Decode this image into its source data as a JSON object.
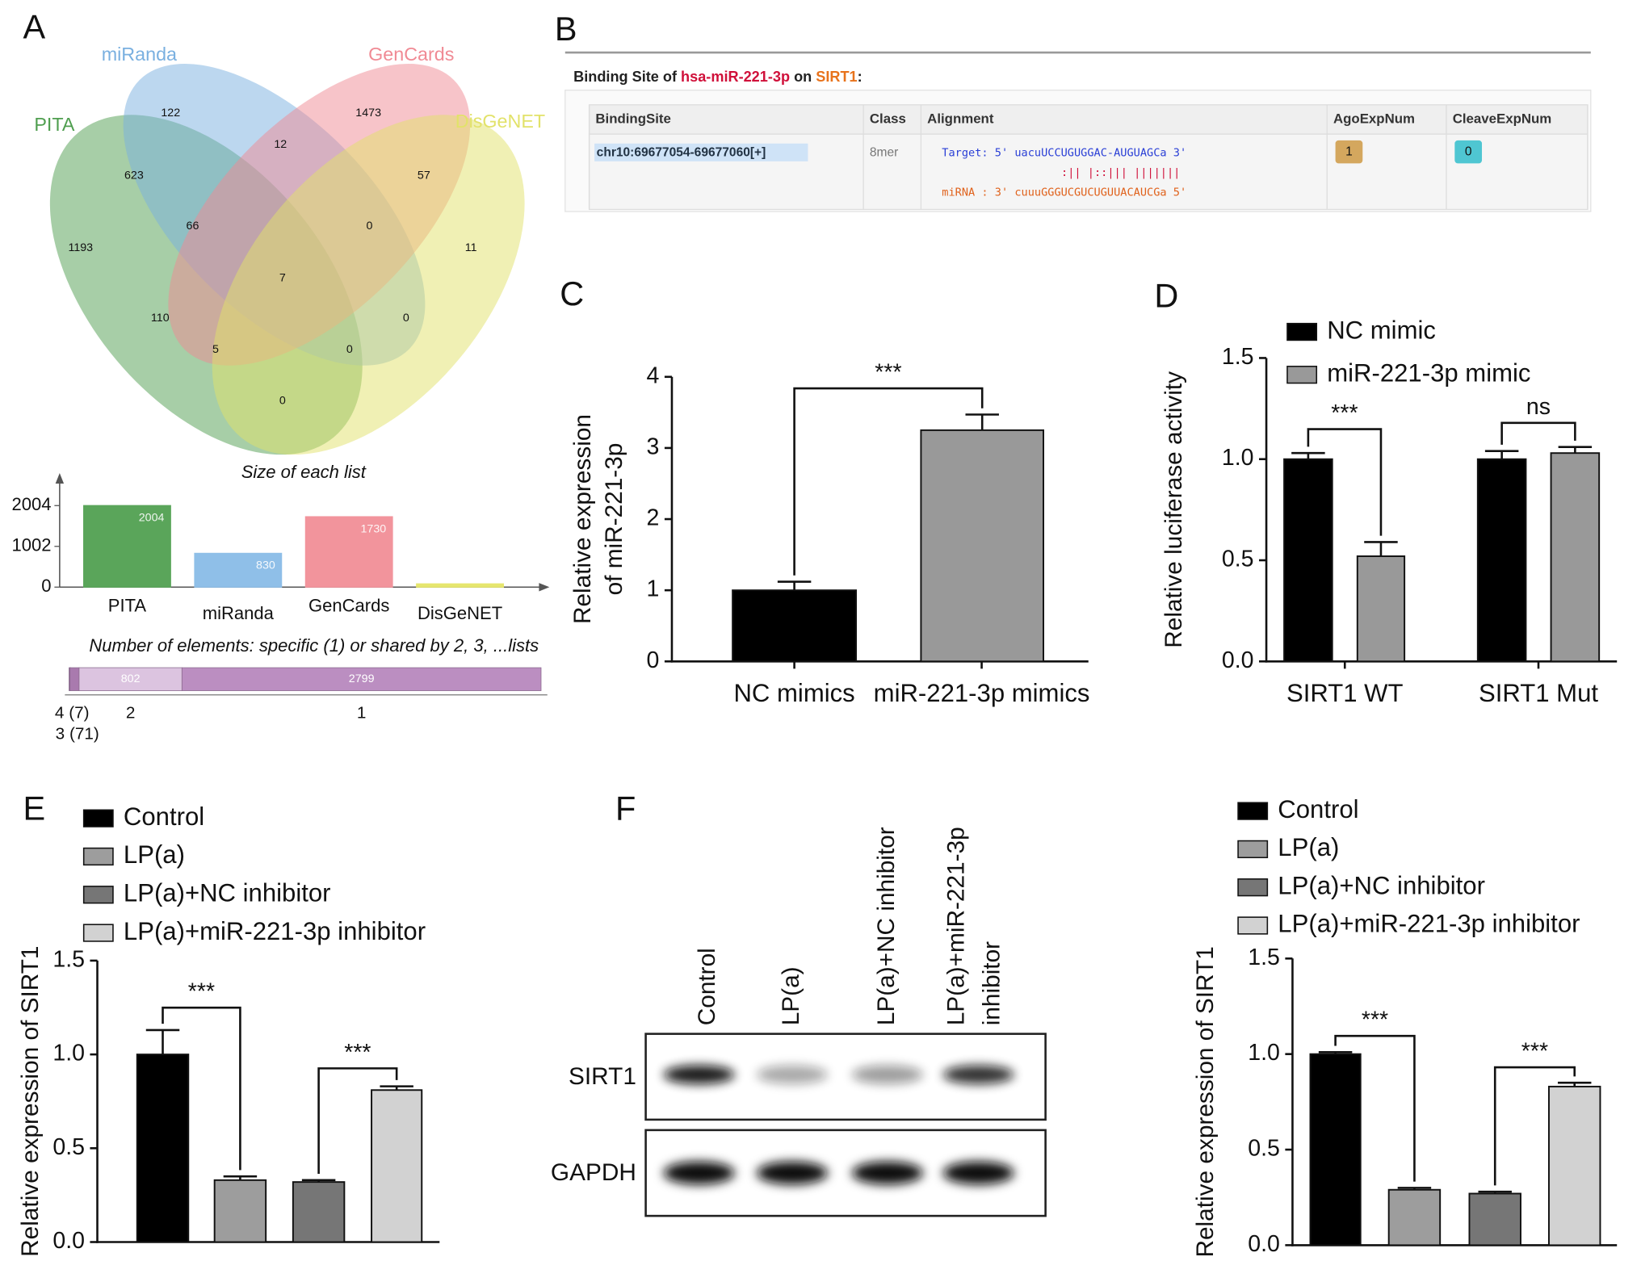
{
  "panel_labels": [
    "A",
    "B",
    "C",
    "D",
    "E",
    "F"
  ],
  "venn": {
    "sets": [
      {
        "name": "PITA",
        "color": "#4f9e4f"
      },
      {
        "name": "miRanda",
        "color": "#7ab0e0"
      },
      {
        "name": "GenCards",
        "color": "#f08a94"
      },
      {
        "name": "DisGeNET",
        "color": "#e2e26a"
      }
    ],
    "regions": [
      122,
      1473,
      623,
      12,
      57,
      1193,
      66,
      0,
      11,
      7,
      110,
      0,
      5,
      0,
      0
    ]
  },
  "binding_site_table": {
    "title_parts": [
      {
        "text": "Binding Site of ",
        "color": "#222222"
      },
      {
        "text": "hsa-miR-221-3p",
        "color": "#d0103a"
      },
      {
        "text": " on ",
        "color": "#222222"
      },
      {
        "text": "SIRT1",
        "color": "#e8731c"
      },
      {
        "text": ":",
        "color": "#222222"
      }
    ],
    "columns": [
      "BindingSite",
      "Class",
      "Alignment",
      "AgoExpNum",
      "CleaveExpNum"
    ],
    "row": {
      "binding_site": "chr10:69677054-69677060[+]",
      "class": "8mer",
      "alignment": [
        "Target: 5' uacuUCCUGUGGAC-AUGUAGCa 3'",
        ":|| |::||| |||||||",
        "miRNA : 3' cuuuGGGUCGUCUGUUACAUCGa 5'"
      ],
      "ago_exp_num": "1",
      "cleave_exp_num": "0"
    }
  },
  "western_blot": {
    "lanes": [
      [
        "Control"
      ],
      [
        "LP(a)"
      ],
      [
        "LP(a)+NC inhibitor"
      ],
      [
        "LP(a)+miR-221-3p",
        "inhibitor"
      ]
    ],
    "rows": [
      "SIRT1",
      "GAPDH"
    ]
  },
  "chart_data": [
    {
      "type": "bar",
      "title": "Size of each list",
      "categories": [
        "PITA",
        "miRanda",
        "GenCards",
        "DisGeNET"
      ],
      "values": [
        2004,
        830,
        1730,
        80
      ],
      "colors": [
        "#5aa55a",
        "#8fbfe8",
        "#f2949c",
        "#e6e66e"
      ],
      "ylim": [
        0,
        2700
      ],
      "yticks": [
        0,
        1002,
        2004
      ]
    },
    {
      "type": "stacked-hbar",
      "title": "Number of elements: specific (1) or shared by 2, 3, ...lists",
      "categories": [
        "4 (7)",
        "3 (71)",
        "2",
        "1"
      ],
      "values": [
        7,
        71,
        802,
        2799
      ],
      "colors": [
        "#8a5a8e",
        "#a97aae",
        "#dcc4e0",
        "#bb8ec1"
      ]
    },
    {
      "type": "bar",
      "ylabel": [
        "Relative expression",
        "of miR-221-3p"
      ],
      "categories": [
        "NC mimics",
        "miR-221-3p mimics"
      ],
      "values": [
        1.0,
        3.25
      ],
      "errors": [
        0.12,
        0.22
      ],
      "colors": [
        "#000000",
        "#999999"
      ],
      "ylim": [
        0,
        4
      ],
      "yticks": [
        0,
        1,
        2,
        3,
        4
      ],
      "annotations": [
        "***"
      ]
    },
    {
      "type": "grouped-bar",
      "ylabel": "Relative luciferase activity",
      "categories": [
        "SIRT1 WT",
        "SIRT1 Mut"
      ],
      "series": [
        {
          "name": "NC mimic",
          "color": "#000000",
          "values": [
            1.0,
            1.0
          ],
          "errors": [
            0.03,
            0.04
          ]
        },
        {
          "name": "miR-221-3p mimic",
          "color": "#999999",
          "values": [
            0.52,
            1.03
          ],
          "errors": [
            0.07,
            0.03
          ]
        }
      ],
      "ylim": [
        0,
        1.5
      ],
      "yticks": [
        {
          "value": 0,
          "label": "0.0"
        },
        0.5,
        {
          "value": 1,
          "label": "1.0"
        },
        1.5
      ],
      "annotations": [
        "***",
        "ns"
      ]
    },
    {
      "type": "grouped-bar",
      "ylabel": "Relative expression of SIRT1",
      "series": [
        {
          "name": "Control",
          "color": "#000000",
          "values": [
            1.0
          ],
          "errors": [
            0.13
          ]
        },
        {
          "name": "LP(a)",
          "color": "#9d9d9d",
          "values": [
            0.33
          ],
          "errors": [
            0.02
          ]
        },
        {
          "name": "LP(a)+NC inhibitor",
          "color": "#767676",
          "values": [
            0.32
          ],
          "errors": [
            0.01
          ]
        },
        {
          "name": "LP(a)+miR-221-3p inhibitor",
          "color": "#d2d2d2",
          "values": [
            0.81
          ],
          "errors": [
            0.02
          ]
        }
      ],
      "ylim": [
        0,
        1.5
      ],
      "yticks": [
        {
          "value": 0,
          "label": "0.0"
        },
        0.5,
        {
          "value": 1,
          "label": "1.0"
        },
        1.5
      ],
      "annotations": [
        "***",
        "***"
      ]
    },
    {
      "type": "grouped-bar",
      "ylabel": "Relative expression of SIRT1",
      "series": [
        {
          "name": "Control",
          "color": "#000000",
          "values": [
            1.0
          ],
          "errors": [
            0.01
          ]
        },
        {
          "name": "LP(a)",
          "color": "#9d9d9d",
          "values": [
            0.29
          ],
          "errors": [
            0.01
          ]
        },
        {
          "name": "LP(a)+NC inhibitor",
          "color": "#767676",
          "values": [
            0.27
          ],
          "errors": [
            0.01
          ]
        },
        {
          "name": "LP(a)+miR-221-3p inhibitor",
          "color": "#d2d2d2",
          "values": [
            0.83
          ],
          "errors": [
            0.02
          ]
        }
      ],
      "ylim": [
        0,
        1.5
      ],
      "yticks": [
        {
          "value": 0,
          "label": "0.0"
        },
        0.5,
        {
          "value": 1,
          "label": "1.0"
        },
        1.5
      ],
      "annotations": [
        "***",
        "***"
      ]
    }
  ]
}
